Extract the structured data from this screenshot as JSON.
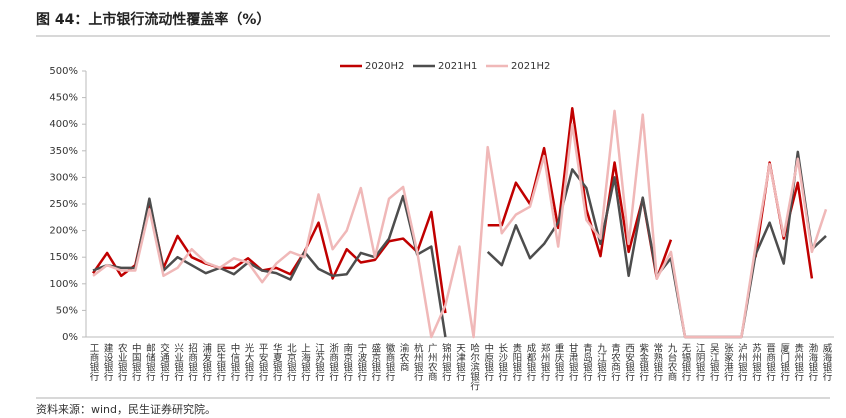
{
  "title": "图 44：上市银行流动性覆盖率（%）",
  "source": "资料来源：wind，民生证券研究院。",
  "chart_data": {
    "type": "line",
    "categories": [
      "工商银行",
      "建设银行",
      "农业银行",
      "中国银行",
      "邮储银行",
      "交通银行",
      "兴业银行",
      "招商银行",
      "浦发银行",
      "民生银行",
      "中信银行",
      "光大银行",
      "平安银行",
      "华夏银行",
      "北京银行",
      "上海银行",
      "江苏银行",
      "浙商银行",
      "南京银行",
      "宁波银行",
      "盛京银行",
      "徽商银行",
      "渝农商",
      "杭州银行",
      "广州农商",
      "锦州银行",
      "天津银行",
      "哈尔滨银行",
      "中原银行",
      "长沙银行",
      "贵阳银行",
      "成都银行",
      "郑州银行",
      "重庆银行",
      "甘肃银行",
      "青岛银行",
      "九江银行",
      "青农商行",
      "西安银行",
      "紫金银行",
      "常熟银行",
      "九台农商",
      "无锡银行",
      "江阴银行",
      "吴江银行",
      "张家港行",
      "泸州银行",
      "苏州银行",
      "晋商银行",
      "厦门银行",
      "贵州银行",
      "渤海银行",
      "威海银行"
    ],
    "series": [
      {
        "name": "2020H2",
        "color": "#c00000",
        "values": [
          120,
          158,
          115,
          135,
          255,
          130,
          190,
          150,
          138,
          130,
          130,
          148,
          125,
          130,
          118,
          160,
          215,
          110,
          165,
          140,
          145,
          180,
          185,
          160,
          235,
          45,
          null,
          null,
          210,
          210,
          290,
          250,
          355,
          205,
          430,
          240,
          152,
          328,
          160,
          260,
          110,
          183,
          null,
          null,
          null,
          null,
          null,
          150,
          328,
          185,
          290,
          110,
          null
        ]
      },
      {
        "name": "2021H1",
        "color": "#4d4d4d",
        "values": [
          125,
          135,
          130,
          130,
          260,
          125,
          150,
          135,
          120,
          130,
          118,
          140,
          125,
          120,
          108,
          160,
          128,
          115,
          118,
          158,
          150,
          185,
          265,
          155,
          170,
          0,
          null,
          null,
          160,
          135,
          210,
          148,
          175,
          215,
          315,
          280,
          175,
          300,
          115,
          262,
          115,
          148,
          0,
          0,
          0,
          0,
          0,
          155,
          215,
          138,
          348,
          165,
          190
        ]
      },
      {
        "name": "2021H2",
        "color": "#f0b8b8",
        "values": [
          115,
          135,
          125,
          125,
          240,
          115,
          130,
          165,
          140,
          130,
          148,
          140,
          103,
          138,
          160,
          150,
          268,
          165,
          200,
          280,
          150,
          260,
          282,
          160,
          0,
          60,
          170,
          0,
          357,
          195,
          230,
          245,
          340,
          170,
          400,
          220,
          185,
          425,
          175,
          418,
          110,
          160,
          0,
          0,
          0,
          0,
          0,
          170,
          325,
          190,
          335,
          160,
          240
        ]
      }
    ],
    "ylim": [
      0,
      500
    ],
    "yticks": [
      {
        "value": 0,
        "label": "0%"
      },
      {
        "value": 50,
        "label": "50%"
      },
      {
        "value": 100,
        "label": "100%"
      },
      {
        "value": 150,
        "label": "150%"
      },
      {
        "value": 200,
        "label": "200%"
      },
      {
        "value": 250,
        "label": "250%"
      },
      {
        "value": 300,
        "label": "300%"
      },
      {
        "value": 350,
        "label": "350%"
      },
      {
        "value": 400,
        "label": "400%"
      },
      {
        "value": 450,
        "label": "450%"
      },
      {
        "value": 500,
        "label": "500%"
      }
    ],
    "legend": "top"
  }
}
